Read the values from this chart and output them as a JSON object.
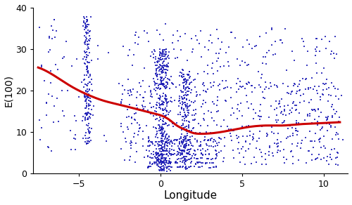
{
  "title": "",
  "xlabel": "Longitude",
  "ylabel": "E(100)",
  "xlim": [
    -7.8,
    11.5
  ],
  "ylim": [
    0,
    40
  ],
  "xticks": [
    -5,
    0,
    5,
    10
  ],
  "yticks": [
    0,
    10,
    20,
    30,
    40
  ],
  "scatter_color": "#1a1ab5",
  "line_color": "#cc0000",
  "scatter_size": 3,
  "scatter_marker": "s",
  "background_color": "#ffffff",
  "seed": 123,
  "figsize": [
    5.0,
    2.92
  ],
  "dpi": 100,
  "line_points_x": [
    -7.5,
    -6.5,
    -5.5,
    -4.5,
    -3.5,
    -2.5,
    -1.5,
    -0.5,
    0.5,
    1.0,
    1.5,
    2.0,
    2.5,
    3.5,
    4.5,
    5.5,
    6.5,
    7.5,
    8.5,
    9.5,
    10.5,
    11.0
  ],
  "line_points_y": [
    25.5,
    23.5,
    21.0,
    19.0,
    17.5,
    16.5,
    15.5,
    14.5,
    13.0,
    11.5,
    10.5,
    9.7,
    9.5,
    9.8,
    10.5,
    11.2,
    11.5,
    11.5,
    11.8,
    12.0,
    12.2,
    12.3
  ]
}
